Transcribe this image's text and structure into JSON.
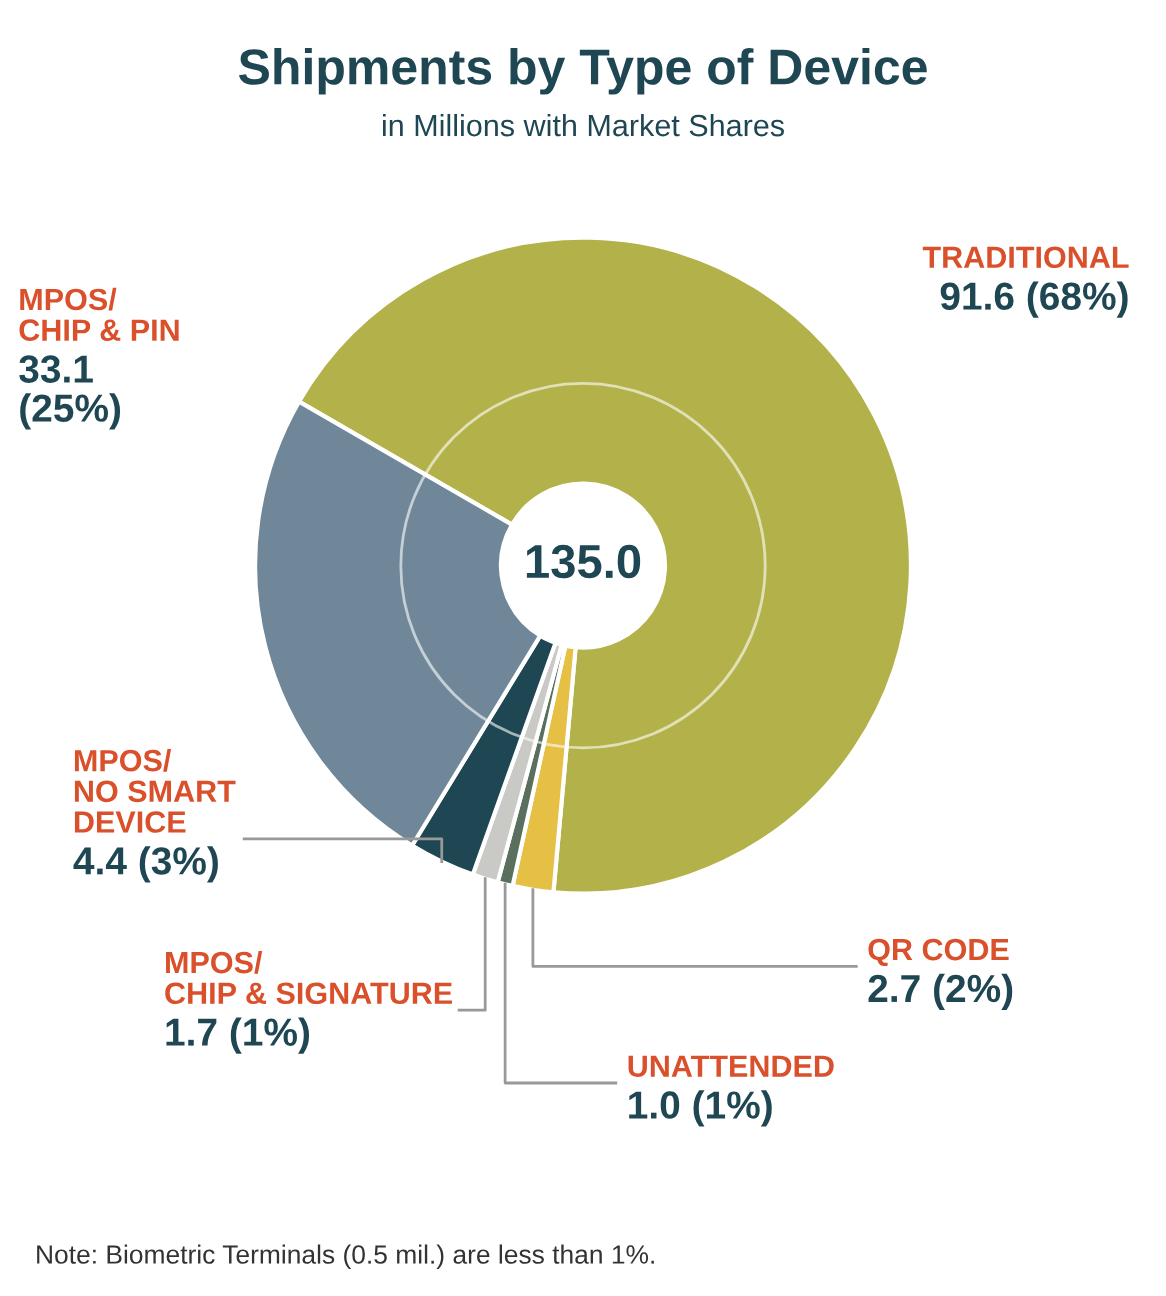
{
  "chart_data": {
    "type": "donut",
    "title": "Shipments by Type of Device",
    "subtitle": "in Millions with Market Shares",
    "categories": [
      "TRADITIONAL",
      "QR CODE",
      "UNATTENDED",
      "MPOS/\nCHIP & SIGNATURE",
      "MPOS/\nNO SMART\nDEVICE",
      "MPOS/\nCHIP & PIN"
    ],
    "values": [
      91.6,
      2.7,
      1.0,
      1.7,
      4.4,
      33.1
    ],
    "colors": [
      "#b3b24a",
      "#e6bf45",
      "#5b6f5e",
      "#c9c9c6",
      "#1f4753",
      "#6f8799"
    ],
    "value_labels": [
      "91.6 (68%)",
      "2.7 (2%)",
      "1.0 (1%)",
      "1.7 (1%)",
      "4.4 (3%)",
      "33.1\n(25%)"
    ],
    "annotations": [
      "135.0",
      "Note: Biometric Terminals (0.5 mil.) are less than 1%."
    ]
  }
}
